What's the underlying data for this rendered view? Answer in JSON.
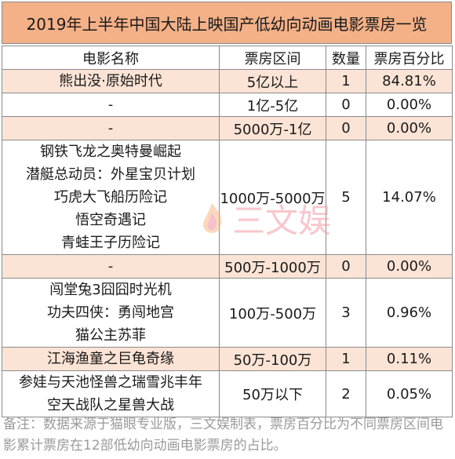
{
  "title": "2019年上半年中国大陆上映国产低幼向动画电影票房一览",
  "headers": [
    "电影名称",
    "票房区间",
    "数量",
    "票房百分比"
  ],
  "groups": [
    {
      "films": [
        "熊出没·原始时代"
      ],
      "range": "5亿以上",
      "count": "1",
      "pct": "84.81%",
      "shade": true
    },
    {
      "films": [
        "-"
      ],
      "range": "1亿-5亿",
      "count": "0",
      "pct": "0.00%",
      "shade": false
    },
    {
      "films": [
        "-"
      ],
      "range": "5000万-1亿",
      "count": "0",
      "pct": "0.00%",
      "shade": true
    },
    {
      "films": [
        "钢铁飞龙之奥特曼崛起",
        "潜艇总动员：外星宝贝计划",
        "巧虎大飞船历险记",
        "悟空奇遇记",
        "青蛙王子历险记"
      ],
      "range": "1000万-5000万",
      "count": "5",
      "pct": "14.07%",
      "shade": false
    },
    {
      "films": [
        "-"
      ],
      "range": "500万-1000万",
      "count": "0",
      "pct": "0.00%",
      "shade": true
    },
    {
      "films": [
        "闯堂兔3囧囧时光机",
        "功夫四侠：勇闯地宫",
        "猫公主苏菲"
      ],
      "range": "100万-500万",
      "count": "3",
      "pct": "0.96%",
      "shade": false
    },
    {
      "films": [
        "江海渔童之巨龟奇缘"
      ],
      "range": "50万-100万",
      "count": "1",
      "pct": "0.11%",
      "shade": true
    },
    {
      "films": [
        "参娃与天池怪兽之瑞雪兆丰年",
        "空天战队之星兽大战"
      ],
      "range": "50万以下",
      "count": "2",
      "pct": "0.05%",
      "shade": false
    }
  ],
  "note": "备注：数据来源于猫眼专业版，三文娱制表，票房百分比为不同票房区间电影累计票房在12部低幼向动画电影票房的占比。",
  "watermark": "三文娱",
  "colors": {
    "title_bg": "#f4b187",
    "row_shade": "#fbe4d5",
    "border": "#8a8a8a"
  }
}
